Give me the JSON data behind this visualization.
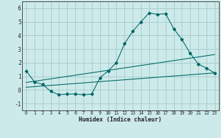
{
  "title": "",
  "xlabel": "Humidex (Indice chaleur)",
  "ylabel": "",
  "bg_color": "#cceaea",
  "grid_color": "#aacccc",
  "line_color": "#006666",
  "xlim": [
    -0.5,
    23.5
  ],
  "ylim": [
    -1.5,
    6.5
  ],
  "yticks": [
    -1,
    0,
    1,
    2,
    3,
    4,
    5,
    6
  ],
  "xticks": [
    0,
    1,
    2,
    3,
    4,
    5,
    6,
    7,
    8,
    9,
    10,
    11,
    12,
    13,
    14,
    15,
    16,
    17,
    18,
    19,
    20,
    21,
    22,
    23
  ],
  "series_main": {
    "x": [
      0,
      1,
      2,
      3,
      4,
      5,
      6,
      7,
      8,
      9,
      10,
      11,
      12,
      13,
      14,
      15,
      16,
      17,
      18,
      19,
      20,
      21,
      22,
      23
    ],
    "y": [
      1.4,
      0.6,
      0.4,
      -0.1,
      -0.35,
      -0.3,
      -0.3,
      -0.35,
      -0.3,
      0.9,
      1.4,
      2.0,
      3.4,
      4.3,
      5.0,
      5.65,
      5.55,
      5.6,
      4.5,
      3.7,
      2.7,
      1.9,
      1.6,
      1.25
    ]
  },
  "series_upper": {
    "x": [
      0,
      23
    ],
    "y": [
      0.55,
      2.6
    ]
  },
  "series_lower": {
    "x": [
      0,
      23
    ],
    "y": [
      0.2,
      1.25
    ]
  }
}
